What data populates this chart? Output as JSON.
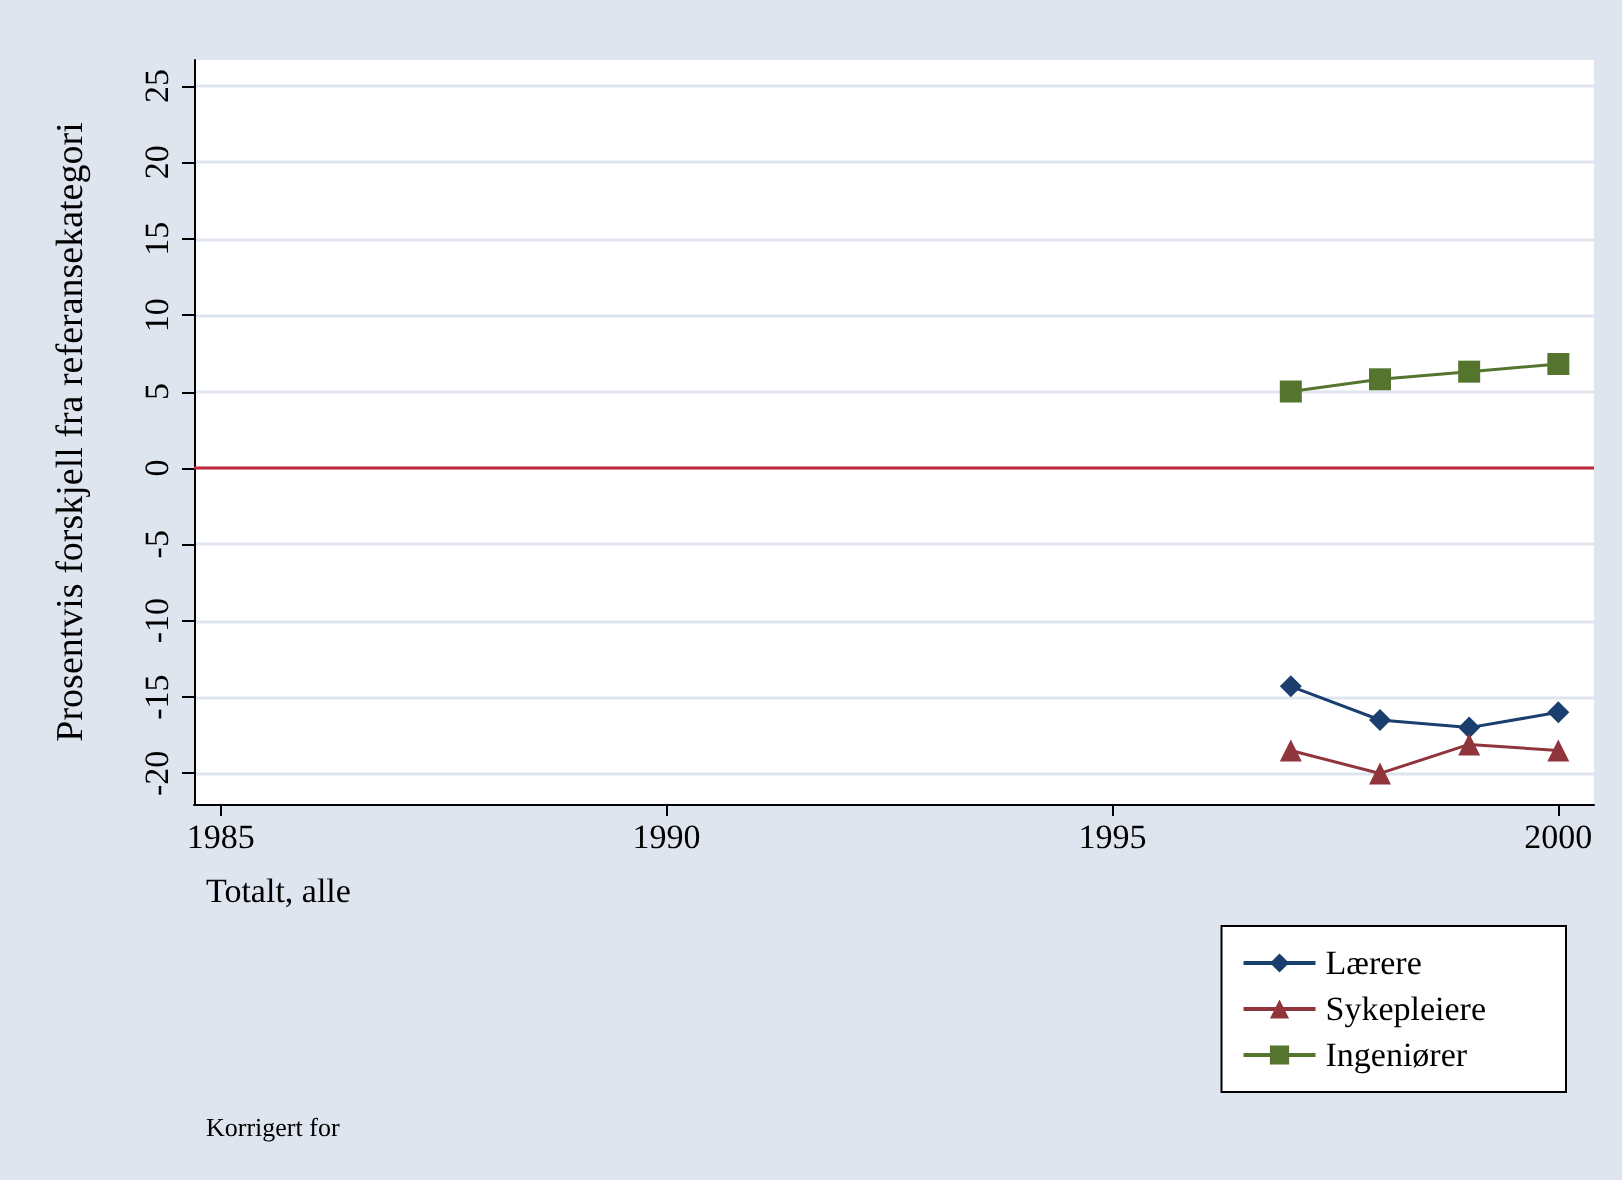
{
  "chart_data": {
    "type": "line",
    "ylabel": "Prosentvis forskjell fra referansekategori",
    "x": [
      1997,
      1998,
      1999,
      2000
    ],
    "series": [
      {
        "name": "Lærere",
        "color": "#1a3f6f",
        "marker": "diamond",
        "values": [
          -14.3,
          -16.5,
          -17,
          -16
        ]
      },
      {
        "name": "Sykepleiere",
        "color": "#90353b",
        "marker": "triangle",
        "values": [
          -18.5,
          -20,
          -18.1,
          -18.5
        ]
      },
      {
        "name": "Ingeniører",
        "color": "#55752f",
        "marker": "square",
        "values": [
          5,
          5.8,
          6.3,
          6.8
        ]
      }
    ],
    "xlim": [
      1984.7,
      2000.4
    ],
    "xticks": [
      1985,
      1990,
      1995,
      2000
    ],
    "ylim": [
      -22,
      26.7
    ],
    "yticks": [
      -20,
      -15,
      -10,
      -5,
      0,
      5,
      10,
      15,
      20,
      25
    ],
    "ref_lines": [
      {
        "axis": "y",
        "value": 0,
        "color": "#c0283a"
      }
    ],
    "annotations": [
      "Totalt, alle",
      "Korrigert for"
    ],
    "grid": "y",
    "legend": "bottom right",
    "line_style": "solid"
  }
}
